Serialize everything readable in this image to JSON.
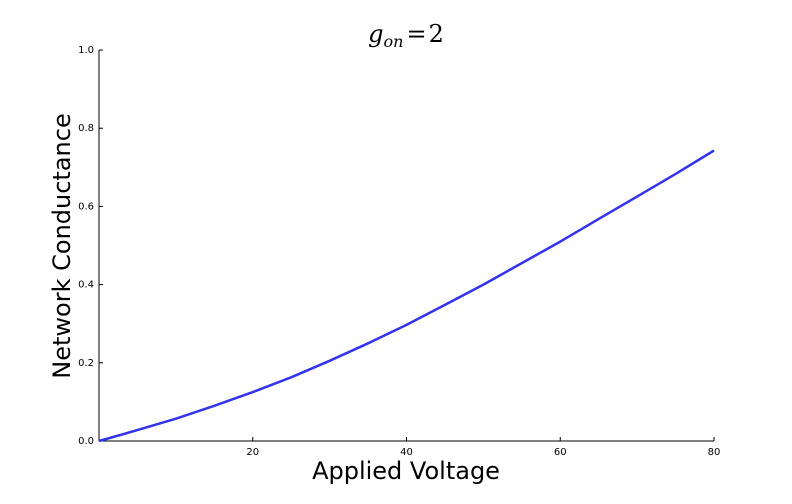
{
  "chart_data": {
    "type": "line",
    "title": "g_on = 2",
    "title_parts": {
      "symbol": "g",
      "subscript": "on",
      "equals": "=",
      "value": "2"
    },
    "xlabel": "Applied Voltage",
    "ylabel": "Network Conductance",
    "xlim": [
      0,
      80
    ],
    "ylim": [
      0,
      1.0
    ],
    "x_ticks": [
      20,
      40,
      60,
      80
    ],
    "x_tick_labels": [
      "20",
      "40",
      "60",
      "80"
    ],
    "y_ticks": [
      0.0,
      0.2,
      0.4,
      0.6,
      0.8,
      1.0
    ],
    "y_tick_labels": [
      "0.0",
      "0.2",
      "0.4",
      "0.6",
      "0.8",
      "1.0"
    ],
    "grid": false,
    "series": [
      {
        "color": "#3333ee",
        "x": [
          0,
          5,
          10,
          15,
          20,
          25,
          30,
          35,
          40,
          45,
          50,
          55,
          60,
          65,
          70,
          75,
          80
        ],
        "y": [
          0.0,
          0.028,
          0.057,
          0.09,
          0.125,
          0.163,
          0.205,
          0.25,
          0.297,
          0.348,
          0.4,
          0.455,
          0.51,
          0.568,
          0.625,
          0.683,
          0.743
        ]
      }
    ]
  }
}
